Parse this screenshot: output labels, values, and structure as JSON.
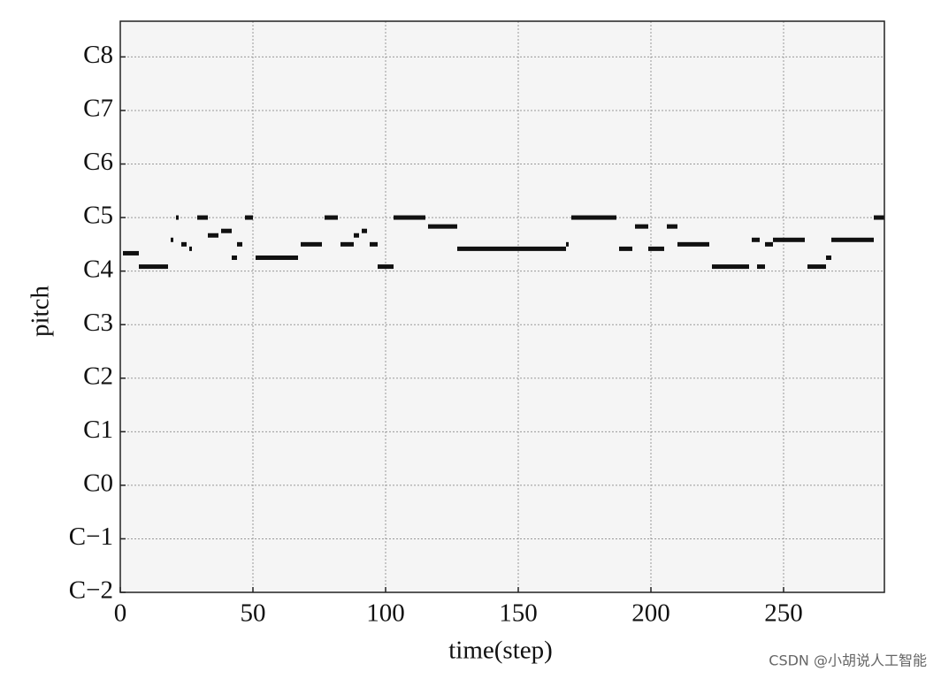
{
  "chart_data": {
    "type": "pianoroll",
    "xlabel": "time(step)",
    "ylabel": "pitch",
    "xlim": [
      0,
      288
    ],
    "xticks": [
      0,
      50,
      100,
      150,
      200,
      250
    ],
    "ylim": [
      0,
      128
    ],
    "yticks": [
      {
        "value": 0,
        "label": "C−2"
      },
      {
        "value": 12,
        "label": "C−1"
      },
      {
        "value": 24,
        "label": "C0"
      },
      {
        "value": 36,
        "label": "C1"
      },
      {
        "value": 48,
        "label": "C2"
      },
      {
        "value": 60,
        "label": "C3"
      },
      {
        "value": 72,
        "label": "C4"
      },
      {
        "value": 84,
        "label": "C5"
      },
      {
        "value": 96,
        "label": "C6"
      },
      {
        "value": 108,
        "label": "C7"
      },
      {
        "value": 120,
        "label": "C8"
      }
    ],
    "grid": true,
    "color": "#111111",
    "notes": [
      {
        "start": 1,
        "end": 7,
        "pitch": 76
      },
      {
        "start": 7,
        "end": 18,
        "pitch": 73
      },
      {
        "start": 19,
        "end": 20,
        "pitch": 79
      },
      {
        "start": 21,
        "end": 22,
        "pitch": 84
      },
      {
        "start": 23,
        "end": 25,
        "pitch": 78
      },
      {
        "start": 26,
        "end": 27,
        "pitch": 77
      },
      {
        "start": 29,
        "end": 33,
        "pitch": 84
      },
      {
        "start": 33,
        "end": 37,
        "pitch": 80
      },
      {
        "start": 38,
        "end": 42,
        "pitch": 81
      },
      {
        "start": 42,
        "end": 44,
        "pitch": 75
      },
      {
        "start": 44,
        "end": 46,
        "pitch": 78
      },
      {
        "start": 47,
        "end": 50,
        "pitch": 84
      },
      {
        "start": 51,
        "end": 67,
        "pitch": 75
      },
      {
        "start": 68,
        "end": 76,
        "pitch": 78
      },
      {
        "start": 77,
        "end": 82,
        "pitch": 84
      },
      {
        "start": 83,
        "end": 88,
        "pitch": 78
      },
      {
        "start": 88,
        "end": 90,
        "pitch": 80
      },
      {
        "start": 91,
        "end": 93,
        "pitch": 81
      },
      {
        "start": 94,
        "end": 97,
        "pitch": 78
      },
      {
        "start": 97,
        "end": 103,
        "pitch": 73
      },
      {
        "start": 103,
        "end": 115,
        "pitch": 84
      },
      {
        "start": 116,
        "end": 127,
        "pitch": 82
      },
      {
        "start": 127,
        "end": 168,
        "pitch": 77
      },
      {
        "start": 168,
        "end": 169,
        "pitch": 78
      },
      {
        "start": 170,
        "end": 187,
        "pitch": 84
      },
      {
        "start": 188,
        "end": 193,
        "pitch": 77
      },
      {
        "start": 194,
        "end": 199,
        "pitch": 82
      },
      {
        "start": 199,
        "end": 205,
        "pitch": 77
      },
      {
        "start": 206,
        "end": 210,
        "pitch": 82
      },
      {
        "start": 210,
        "end": 222,
        "pitch": 78
      },
      {
        "start": 223,
        "end": 237,
        "pitch": 73
      },
      {
        "start": 238,
        "end": 241,
        "pitch": 79
      },
      {
        "start": 240,
        "end": 243,
        "pitch": 73
      },
      {
        "start": 243,
        "end": 246,
        "pitch": 78
      },
      {
        "start": 246,
        "end": 258,
        "pitch": 79
      },
      {
        "start": 259,
        "end": 266,
        "pitch": 73
      },
      {
        "start": 266,
        "end": 268,
        "pitch": 75
      },
      {
        "start": 268,
        "end": 284,
        "pitch": 79
      },
      {
        "start": 284,
        "end": 288,
        "pitch": 84
      }
    ]
  },
  "watermark": "CSDN @小胡说人工智能"
}
